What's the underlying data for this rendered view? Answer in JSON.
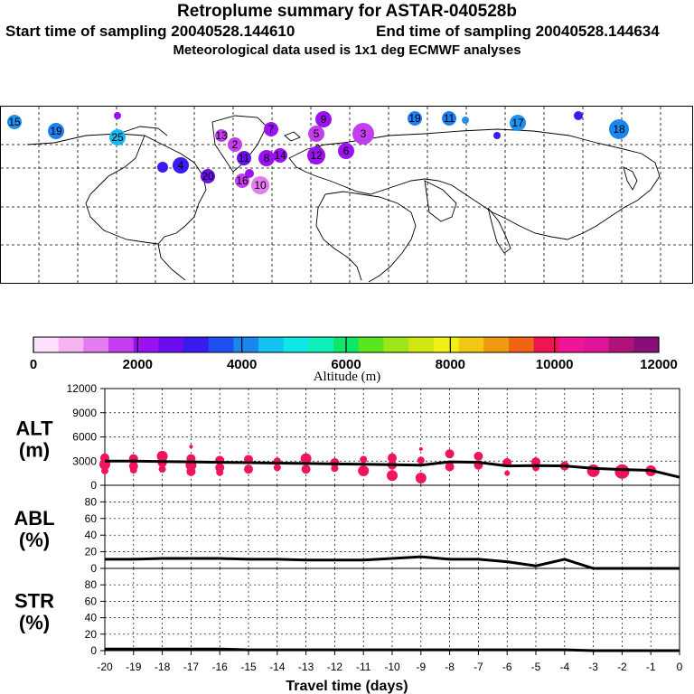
{
  "header": {
    "title": "Retroplume summary for ASTAR-040528b",
    "start": "Start time of sampling 20040528.144610",
    "end": "End time of sampling 20040528.144634",
    "met": "Meteorological data used is 1x1 deg ECMWF analyses"
  },
  "colorbar": {
    "ticks": [
      "0",
      "2000",
      "4000",
      "6000",
      "8000",
      "10000",
      "12000"
    ],
    "label": "Altitude (m)",
    "colors": [
      "#fde0fb",
      "#f6b3f2",
      "#e37cf0",
      "#c43ef0",
      "#9b12f0",
      "#6a0ef0",
      "#3a1cf0",
      "#1f4ff0",
      "#1a86f0",
      "#12c4f0",
      "#10e6e6",
      "#10f0b8",
      "#10e66a",
      "#5ae61e",
      "#9ee61a",
      "#d2e614",
      "#f0f014",
      "#f0c814",
      "#f09a14",
      "#f06414",
      "#f01450",
      "#f01496",
      "#e0149a",
      "#b0127a",
      "#8a0e7a"
    ]
  },
  "map_labels": {
    "numbers": [
      "15",
      "19",
      "25",
      "11",
      "13",
      "9",
      "7",
      "3",
      "5",
      "8",
      "14",
      "12",
      "2",
      "20",
      "10",
      "4",
      "16",
      "6",
      "18",
      "17"
    ]
  },
  "chart_data": {
    "type": "line",
    "x_label": "Travel time (days)",
    "x_ticks": [
      "-20",
      "-19",
      "-18",
      "-17",
      "-16",
      "-15",
      "-14",
      "-13",
      "-12",
      "-11",
      "-10",
      "-9",
      "-8",
      "-7",
      "-6",
      "-5",
      "-4",
      "-3",
      "-2",
      "-1",
      "0"
    ],
    "x": [
      -20,
      -19,
      -18,
      -17,
      -16,
      -15,
      -14,
      -13,
      -12,
      -11,
      -10,
      -9,
      -8,
      -7,
      -6,
      -5,
      -4,
      -3,
      -2,
      -1,
      0
    ],
    "panels": [
      {
        "name": "ALT",
        "unit": "(m)",
        "ylim": [
          0,
          12000
        ],
        "y_ticks": [
          "12000",
          "9000",
          "6000",
          "3000",
          "0"
        ],
        "line": [
          3000,
          3000,
          2950,
          2900,
          2850,
          2800,
          2750,
          2700,
          2650,
          2600,
          2550,
          2500,
          2900,
          2850,
          2400,
          2450,
          2400,
          2100,
          1950,
          1850,
          1000
        ],
        "points": [
          {
            "x": -20,
            "y": 3400,
            "s": 5
          },
          {
            "x": -20,
            "y": 2600,
            "s": 6
          },
          {
            "x": -20,
            "y": 1800,
            "s": 4
          },
          {
            "x": -19,
            "y": 3300,
            "s": 5
          },
          {
            "x": -19,
            "y": 2400,
            "s": 5
          },
          {
            "x": -19,
            "y": 1900,
            "s": 4
          },
          {
            "x": -18,
            "y": 3600,
            "s": 6
          },
          {
            "x": -18,
            "y": 2800,
            "s": 5
          },
          {
            "x": -18,
            "y": 2000,
            "s": 4
          },
          {
            "x": -17,
            "y": 3300,
            "s": 5
          },
          {
            "x": -17,
            "y": 2500,
            "s": 6
          },
          {
            "x": -17,
            "y": 1700,
            "s": 5
          },
          {
            "x": -17,
            "y": 4800,
            "s": 2
          },
          {
            "x": -16,
            "y": 3100,
            "s": 5
          },
          {
            "x": -16,
            "y": 2200,
            "s": 5
          },
          {
            "x": -16,
            "y": 1600,
            "s": 4
          },
          {
            "x": -15,
            "y": 3200,
            "s": 5
          },
          {
            "x": -15,
            "y": 2000,
            "s": 5
          },
          {
            "x": -14,
            "y": 3000,
            "s": 4
          },
          {
            "x": -14,
            "y": 2200,
            "s": 4
          },
          {
            "x": -13,
            "y": 3300,
            "s": 6
          },
          {
            "x": -13,
            "y": 2000,
            "s": 5
          },
          {
            "x": -12,
            "y": 2800,
            "s": 5
          },
          {
            "x": -12,
            "y": 2100,
            "s": 4
          },
          {
            "x": -11,
            "y": 3200,
            "s": 4
          },
          {
            "x": -11,
            "y": 1800,
            "s": 6
          },
          {
            "x": -10,
            "y": 3400,
            "s": 5
          },
          {
            "x": -10,
            "y": 2500,
            "s": 5
          },
          {
            "x": -10,
            "y": 1200,
            "s": 6
          },
          {
            "x": -9,
            "y": 4500,
            "s": 2
          },
          {
            "x": -9,
            "y": 3100,
            "s": 4
          },
          {
            "x": -9,
            "y": 900,
            "s": 6
          },
          {
            "x": -8,
            "y": 3900,
            "s": 5
          },
          {
            "x": -8,
            "y": 2300,
            "s": 5
          },
          {
            "x": -7,
            "y": 3600,
            "s": 5
          },
          {
            "x": -7,
            "y": 2500,
            "s": 5
          },
          {
            "x": -6,
            "y": 2800,
            "s": 5
          },
          {
            "x": -6,
            "y": 1500,
            "s": 3
          },
          {
            "x": -5,
            "y": 2900,
            "s": 5
          },
          {
            "x": -5,
            "y": 2200,
            "s": 4
          },
          {
            "x": -4,
            "y": 2400,
            "s": 5
          },
          {
            "x": -3,
            "y": 1800,
            "s": 7
          },
          {
            "x": -2,
            "y": 1700,
            "s": 8
          },
          {
            "x": -1,
            "y": 1800,
            "s": 6
          }
        ],
        "point_color": "#f0145a"
      },
      {
        "name": "ABL",
        "unit": "(%)",
        "ylim": [
          0,
          100
        ],
        "y_ticks": [
          "80",
          "60",
          "40",
          "20",
          "0"
        ],
        "line": [
          11,
          11,
          12,
          12,
          12,
          11,
          11,
          10,
          10,
          10,
          12,
          14,
          11,
          11,
          8,
          3,
          11,
          0,
          0,
          0,
          0
        ]
      },
      {
        "name": "STR",
        "unit": "(%)",
        "ylim": [
          0,
          100
        ],
        "y_ticks": [
          "80",
          "60",
          "40",
          "20",
          "0"
        ],
        "line": [
          2,
          2,
          2,
          2,
          2,
          1,
          1,
          1,
          1,
          1,
          1,
          1,
          1,
          1,
          1,
          1,
          1,
          0,
          0,
          0,
          0
        ]
      }
    ]
  }
}
